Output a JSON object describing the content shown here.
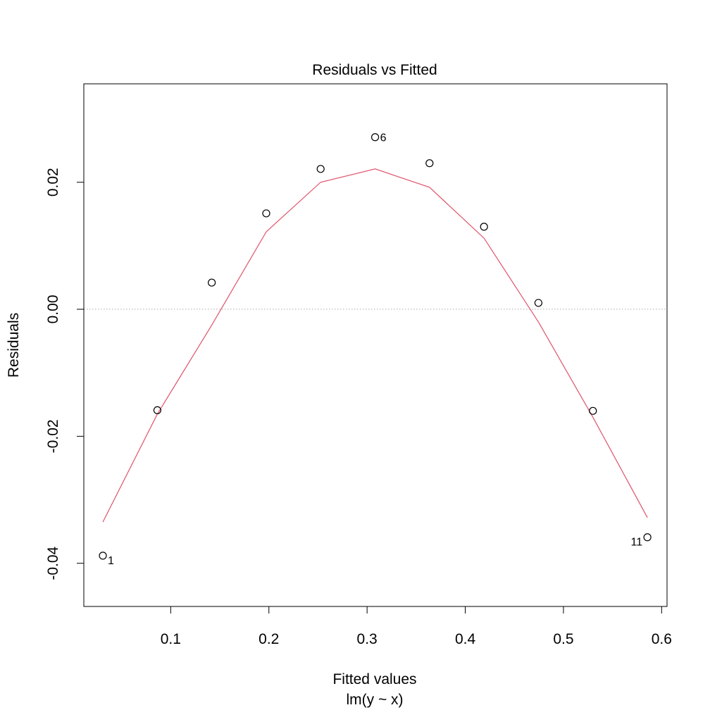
{
  "chart_data": {
    "type": "scatter",
    "title": "Residuals vs Fitted",
    "xlabel": "Fitted values",
    "xsublabel": "lm(y ~ x)",
    "ylabel": "Residuals",
    "xlim": [
      0.0115,
      0.6055
    ],
    "ylim": [
      -0.0468,
      0.0355
    ],
    "xticks": [
      0.1,
      0.2,
      0.3,
      0.4,
      0.5,
      0.6
    ],
    "xtick_labels": [
      "0.1",
      "0.2",
      "0.3",
      "0.4",
      "0.5",
      "0.6"
    ],
    "yticks": [
      -0.04,
      -0.02,
      0.0,
      0.02
    ],
    "ytick_labels": [
      "-0.04",
      "-0.02",
      "0.00",
      "0.02"
    ],
    "grid": false,
    "reference_line": {
      "y": 0,
      "style": "dotted",
      "color": "#aaaaaa"
    },
    "points": [
      {
        "x": 0.0309,
        "y": -0.0388,
        "label": "1"
      },
      {
        "x": 0.0864,
        "y": -0.0159,
        "label": ""
      },
      {
        "x": 0.1418,
        "y": 0.0042,
        "label": ""
      },
      {
        "x": 0.1973,
        "y": 0.0151,
        "label": ""
      },
      {
        "x": 0.2527,
        "y": 0.0221,
        "label": ""
      },
      {
        "x": 0.3082,
        "y": 0.0271,
        "label": "6"
      },
      {
        "x": 0.3636,
        "y": 0.023,
        "label": ""
      },
      {
        "x": 0.4191,
        "y": 0.013,
        "label": ""
      },
      {
        "x": 0.4745,
        "y": 0.001,
        "label": ""
      },
      {
        "x": 0.53,
        "y": -0.016,
        "label": ""
      },
      {
        "x": 0.5855,
        "y": -0.0359,
        "label": "11"
      }
    ],
    "smooth_line": {
      "color": "#df536b",
      "x": [
        0.0309,
        0.0864,
        0.1418,
        0.1973,
        0.2527,
        0.3082,
        0.3636,
        0.4191,
        0.4745,
        0.53,
        0.5855
      ],
      "y": [
        -0.0335,
        -0.0165,
        -0.0025,
        0.0122,
        0.02,
        0.0221,
        0.0192,
        0.0112,
        -0.002,
        -0.017,
        -0.0328
      ]
    }
  }
}
